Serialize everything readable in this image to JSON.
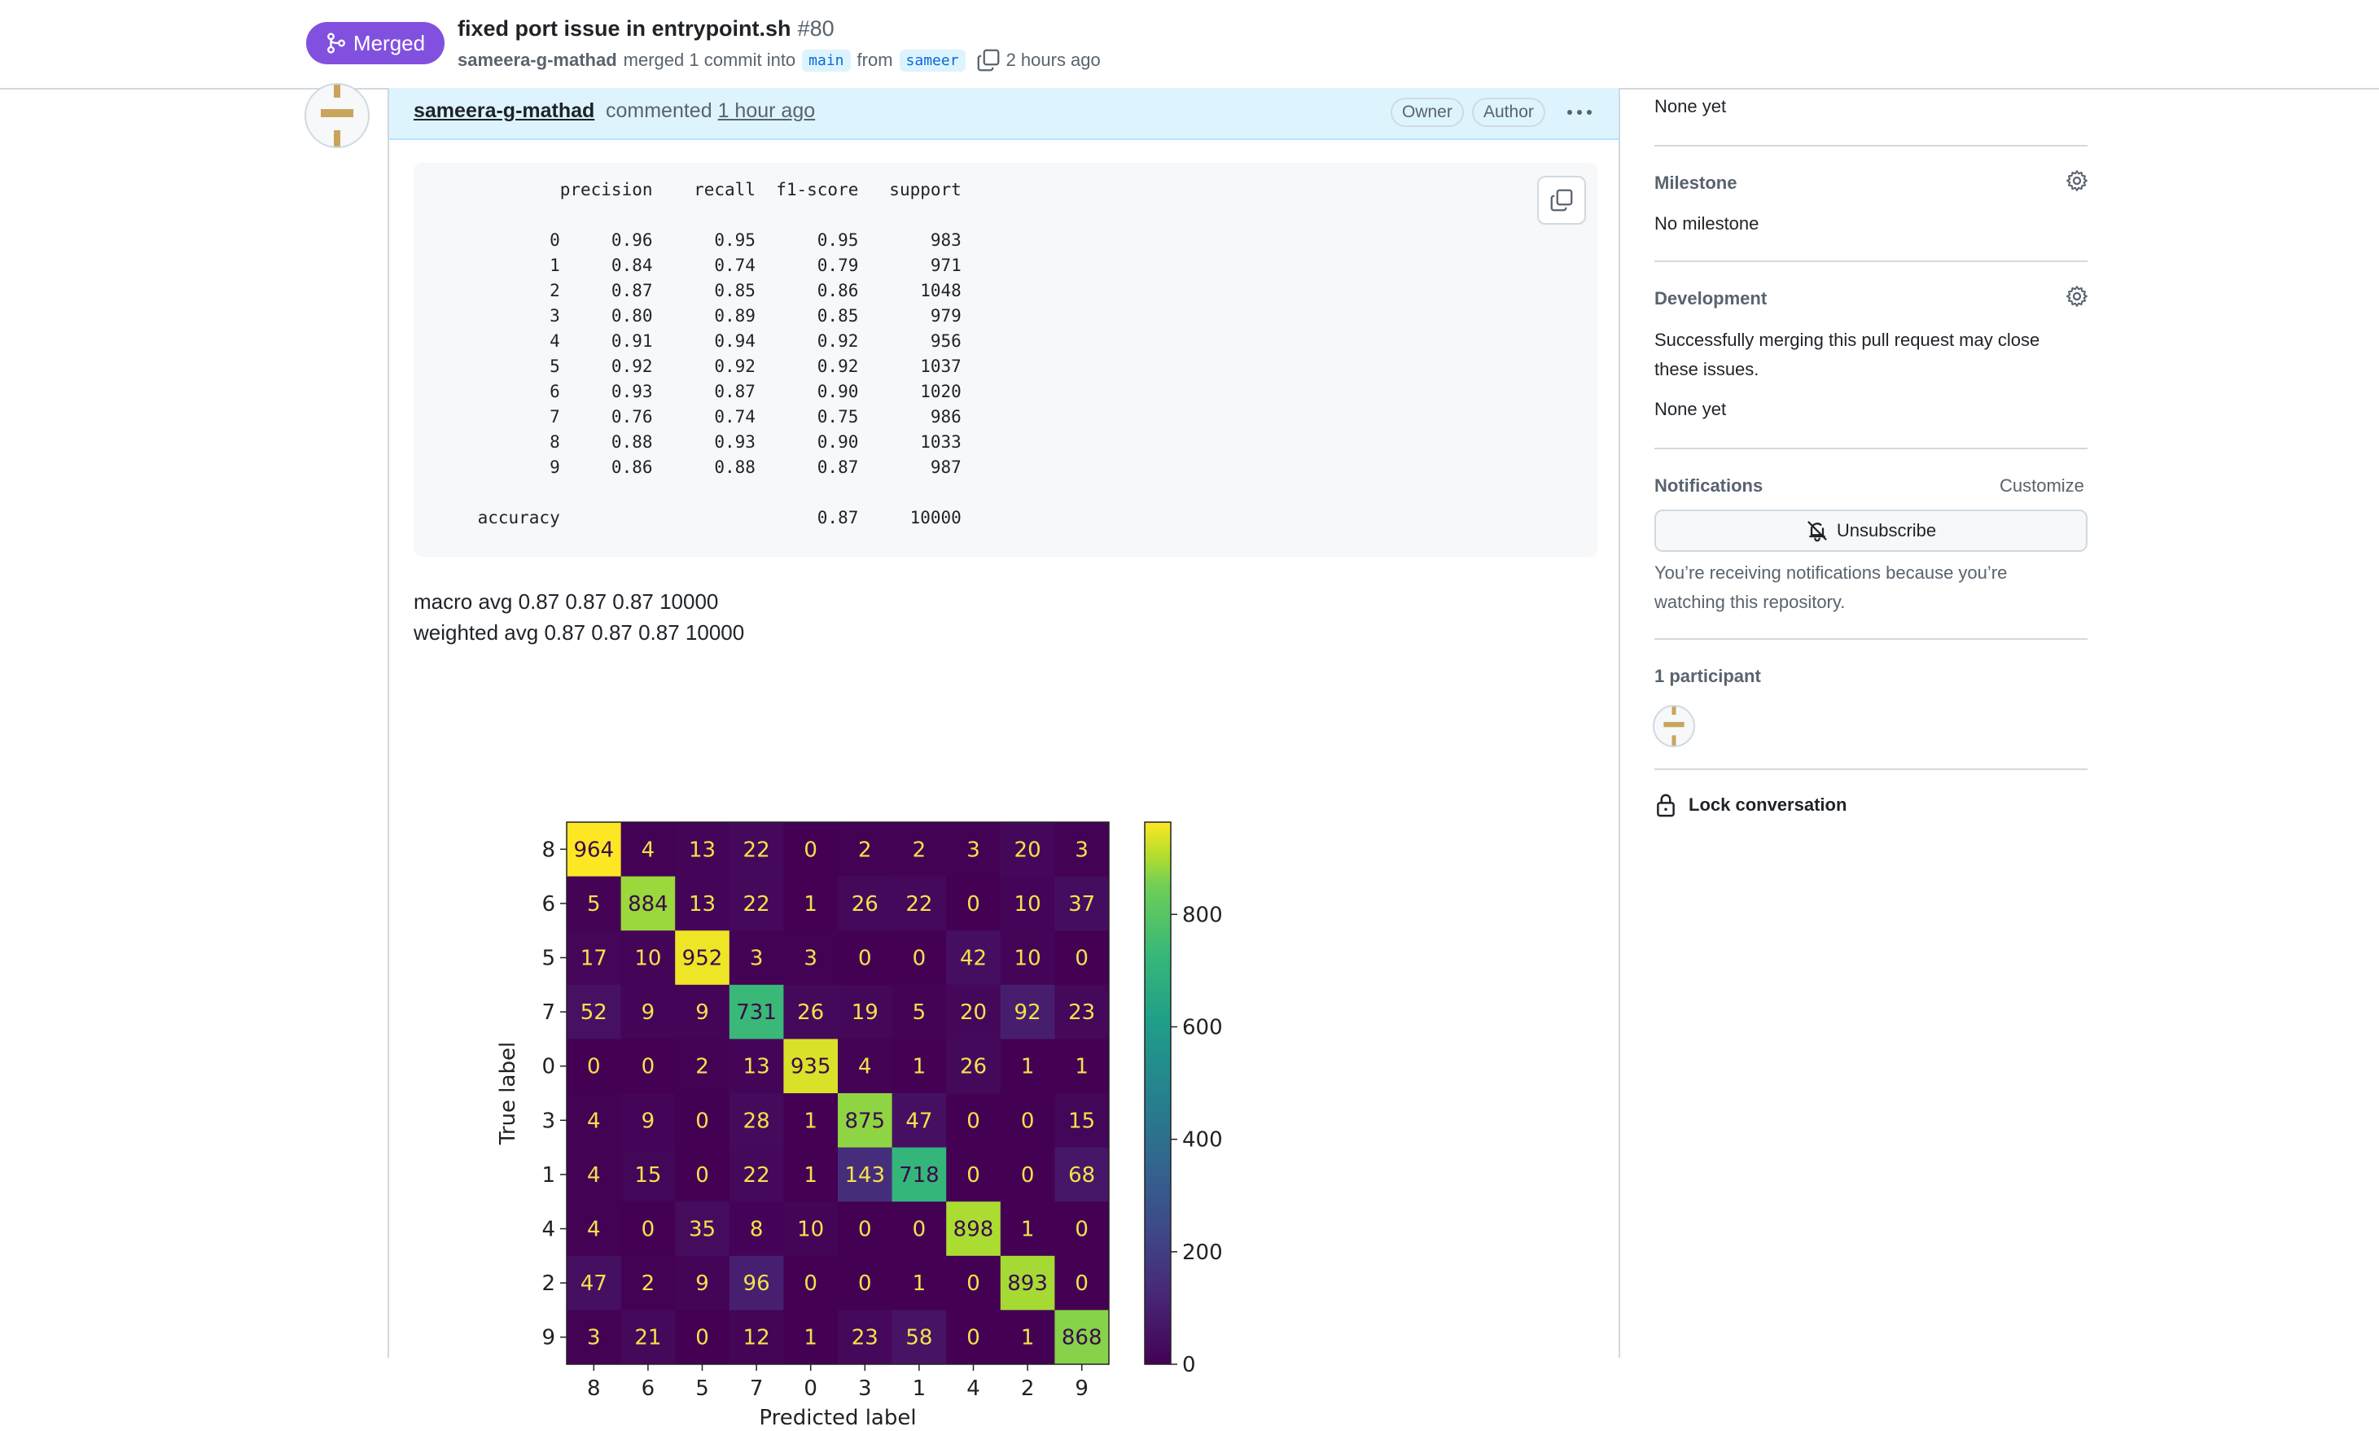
{
  "header": {
    "status_label": "Merged",
    "title": "fixed port issue in entrypoint.sh",
    "number": "#80",
    "author": "sameera-g-mathad",
    "merge_text": "merged 1 commit into",
    "base_branch": "main",
    "from_text": "from",
    "head_branch": "sameer",
    "time": "2 hours ago"
  },
  "comment": {
    "author": "sameera-g-mathad",
    "action": "commented",
    "time": "1 hour ago",
    "badges": [
      "Owner",
      "Author"
    ],
    "report_header": [
      "precision",
      "recall",
      "f1-score",
      "support"
    ],
    "report_rows": [
      {
        "label": "0",
        "precision": "0.96",
        "recall": "0.95",
        "f1": "0.95",
        "support": "983"
      },
      {
        "label": "1",
        "precision": "0.84",
        "recall": "0.74",
        "f1": "0.79",
        "support": "971"
      },
      {
        "label": "2",
        "precision": "0.87",
        "recall": "0.85",
        "f1": "0.86",
        "support": "1048"
      },
      {
        "label": "3",
        "precision": "0.80",
        "recall": "0.89",
        "f1": "0.85",
        "support": "979"
      },
      {
        "label": "4",
        "precision": "0.91",
        "recall": "0.94",
        "f1": "0.92",
        "support": "956"
      },
      {
        "label": "5",
        "precision": "0.92",
        "recall": "0.92",
        "f1": "0.92",
        "support": "1037"
      },
      {
        "label": "6",
        "precision": "0.93",
        "recall": "0.87",
        "f1": "0.90",
        "support": "1020"
      },
      {
        "label": "7",
        "precision": "0.76",
        "recall": "0.74",
        "f1": "0.75",
        "support": "986"
      },
      {
        "label": "8",
        "precision": "0.88",
        "recall": "0.93",
        "f1": "0.90",
        "support": "1033"
      },
      {
        "label": "9",
        "precision": "0.86",
        "recall": "0.88",
        "f1": "0.87",
        "support": "987"
      }
    ],
    "accuracy_row": {
      "label": "accuracy",
      "f1": "0.87",
      "support": "10000"
    },
    "macro_avg": "macro avg 0.87 0.87 0.87 10000",
    "weighted_avg": "weighted avg 0.87 0.87 0.87 10000"
  },
  "chart_data": {
    "type": "heatmap",
    "xlabel": "Predicted label",
    "ylabel": "True label",
    "x_categories": [
      "8",
      "6",
      "5",
      "7",
      "0",
      "3",
      "1",
      "4",
      "2",
      "9"
    ],
    "y_categories": [
      "8",
      "6",
      "5",
      "7",
      "0",
      "3",
      "1",
      "4",
      "2",
      "9"
    ],
    "values": [
      [
        964,
        4,
        13,
        22,
        0,
        2,
        2,
        3,
        20,
        3
      ],
      [
        5,
        884,
        13,
        22,
        1,
        26,
        22,
        0,
        10,
        37
      ],
      [
        17,
        10,
        952,
        3,
        3,
        0,
        0,
        42,
        10,
        0
      ],
      [
        52,
        9,
        9,
        731,
        26,
        19,
        5,
        20,
        92,
        23
      ],
      [
        0,
        0,
        2,
        13,
        935,
        4,
        1,
        26,
        1,
        1
      ],
      [
        4,
        9,
        0,
        28,
        1,
        875,
        47,
        0,
        0,
        15
      ],
      [
        4,
        15,
        0,
        22,
        1,
        143,
        718,
        0,
        0,
        68
      ],
      [
        4,
        0,
        35,
        8,
        10,
        0,
        0,
        898,
        1,
        0
      ],
      [
        47,
        2,
        9,
        96,
        0,
        0,
        1,
        0,
        893,
        0
      ],
      [
        3,
        21,
        0,
        12,
        1,
        23,
        58,
        0,
        1,
        868
      ]
    ],
    "colorbar": {
      "min": 0,
      "max": 964,
      "ticks": [
        0,
        200,
        400,
        600,
        800
      ]
    },
    "colormap": "viridis"
  },
  "sidebar": {
    "labels_value": "None yet",
    "milestone_heading": "Milestone",
    "milestone_value": "No milestone",
    "development_heading": "Development",
    "development_text": "Successfully merging this pull request may close these issues.",
    "development_value": "None yet",
    "notifications_heading": "Notifications",
    "customize_label": "Customize",
    "unsubscribe_label": "Unsubscribe",
    "notify_reason": "You’re receiving notifications because you’re watching this repository.",
    "participants_heading": "1 participant",
    "lock_label": "Lock conversation"
  },
  "colors": {
    "merged": "#8250df",
    "link": "#0969da",
    "comment_header_bg": "#ddf4ff",
    "avatar_identicon": "#c9a55c"
  },
  "icons": [
    "git-merge-icon",
    "copy-icon",
    "kebab-horizontal-icon",
    "gear-icon",
    "bell-slash-icon",
    "lock-icon"
  ]
}
